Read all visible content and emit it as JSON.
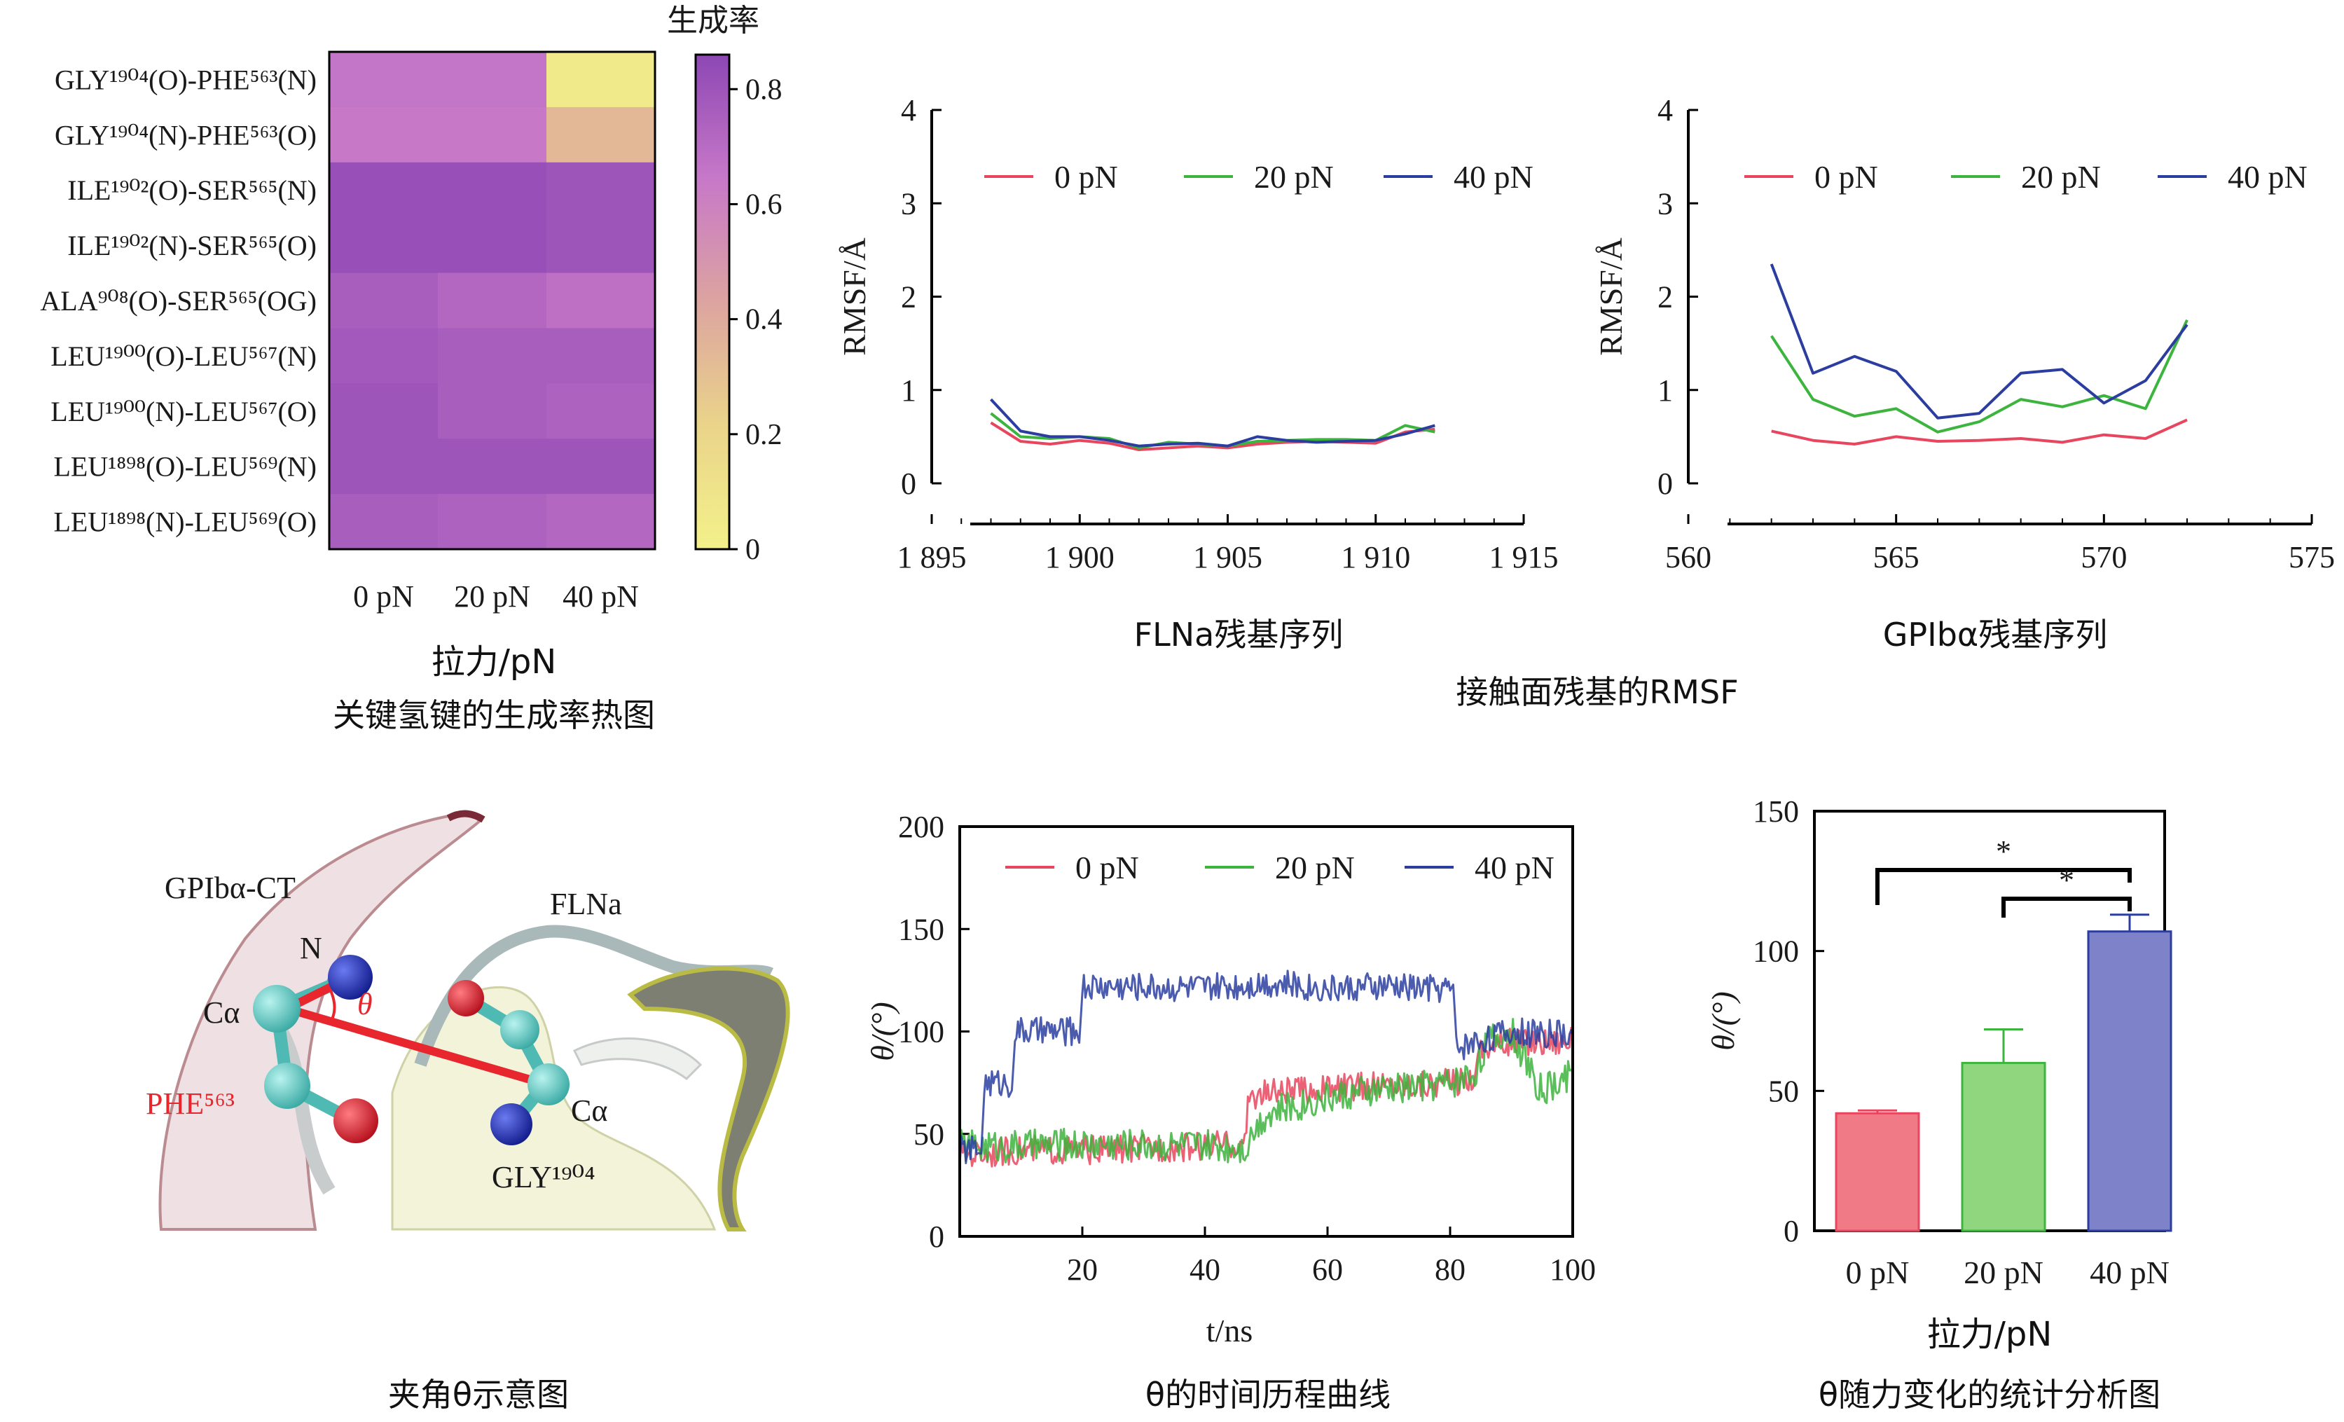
{
  "chart_data": [
    {
      "type": "heatmap",
      "rows": [
        "GLY¹⁹⁰⁴(O)-PHE⁵⁶³(N)",
        "GLY¹⁹⁰⁴(N)-PHE⁵⁶³(O)",
        "ILE¹⁹⁰²(O)-SER⁵⁶⁵(N)",
        "ILE¹⁹⁰²(N)-SER⁵⁶⁵(O)",
        "ALA⁹⁰⁸(O)-SER⁵⁶⁵(OG)",
        "LEU¹⁹⁰⁰(O)-LEU⁵⁶⁷(N)",
        "LEU¹⁹⁰⁰(N)-LEU⁵⁶⁷(O)",
        "LEU¹⁸⁹⁸(O)-LEU⁵⁶⁹(N)",
        "LEU¹⁸⁹⁸(N)-LEU⁵⁶⁹(O)"
      ],
      "columns": [
        "0 pN",
        "20 pN",
        "40 pN"
      ],
      "values": [
        [
          0.66,
          0.66,
          0.05
        ],
        [
          0.64,
          0.64,
          0.34
        ],
        [
          0.82,
          0.82,
          0.8
        ],
        [
          0.82,
          0.82,
          0.8
        ],
        [
          0.76,
          0.72,
          0.68
        ],
        [
          0.78,
          0.76,
          0.76
        ],
        [
          0.8,
          0.76,
          0.74
        ],
        [
          0.8,
          0.8,
          0.8
        ],
        [
          0.76,
          0.74,
          0.72
        ]
      ],
      "xlabel": "拉力/pN",
      "caption": "关键氢键的生成率热图",
      "colorbar": {
        "title": "生成率",
        "ticks": [
          "0",
          "0.2",
          "0.4",
          "0.6",
          "0.8"
        ],
        "range": [
          0,
          0.86
        ]
      }
    },
    {
      "type": "line",
      "xlabel": "FLNa残基序列",
      "ylabel": "RMSF/Å",
      "xlim": [
        1895,
        1915
      ],
      "ylim": [
        0,
        4
      ],
      "xticks": [
        "1 895",
        "1 900",
        "1 905",
        "1 910",
        "1 915"
      ],
      "yticks": [
        "0",
        "1",
        "2",
        "3",
        "4"
      ],
      "x": [
        1897,
        1898,
        1899,
        1900,
        1901,
        1902,
        1903,
        1904,
        1905,
        1906,
        1907,
        1908,
        1909,
        1910,
        1911,
        1912
      ],
      "series": [
        {
          "name": "0 pN",
          "color": "#e8465e",
          "values": [
            0.65,
            0.45,
            0.42,
            0.46,
            0.43,
            0.36,
            0.38,
            0.4,
            0.38,
            0.42,
            0.44,
            0.45,
            0.44,
            0.43,
            0.55,
            0.58
          ]
        },
        {
          "name": "20 pN",
          "color": "#3db43d",
          "values": [
            0.75,
            0.5,
            0.48,
            0.5,
            0.48,
            0.38,
            0.44,
            0.42,
            0.4,
            0.45,
            0.46,
            0.47,
            0.47,
            0.46,
            0.62,
            0.55
          ]
        },
        {
          "name": "40 pN",
          "color": "#2b3ea0",
          "values": [
            0.9,
            0.56,
            0.5,
            0.5,
            0.46,
            0.4,
            0.42,
            0.43,
            0.4,
            0.5,
            0.46,
            0.44,
            0.45,
            0.46,
            0.53,
            0.62
          ]
        }
      ],
      "legend": "top"
    },
    {
      "type": "line",
      "xlabel": "GPIbα残基序列",
      "ylabel": "RMSF/Å",
      "xlim": [
        560,
        575
      ],
      "ylim": [
        0,
        4
      ],
      "xticks": [
        "560",
        "565",
        "570",
        "575"
      ],
      "yticks": [
        "0",
        "1",
        "2",
        "3",
        "4"
      ],
      "x": [
        562,
        563,
        564,
        565,
        566,
        567,
        568,
        569,
        570,
        571,
        572
      ],
      "series": [
        {
          "name": "0 pN",
          "color": "#e8465e",
          "values": [
            0.56,
            0.46,
            0.42,
            0.5,
            0.45,
            0.46,
            0.48,
            0.44,
            0.52,
            0.48,
            0.68
          ]
        },
        {
          "name": "20 pN",
          "color": "#3db43d",
          "values": [
            1.58,
            0.9,
            0.72,
            0.8,
            0.55,
            0.66,
            0.9,
            0.82,
            0.94,
            0.8,
            1.75
          ]
        },
        {
          "name": "40 pN",
          "color": "#2b3ea0",
          "values": [
            2.35,
            1.18,
            1.36,
            1.2,
            0.7,
            0.75,
            1.18,
            1.22,
            0.86,
            1.1,
            1.7
          ]
        }
      ],
      "legend": "top",
      "group_caption": "接触面残基的RMSF"
    },
    {
      "type": "line",
      "xlabel": "t/ns",
      "ylabel": "θ/(°)",
      "xlim": [
        0,
        100
      ],
      "ylim": [
        0,
        200
      ],
      "xticks": [
        "20",
        "40",
        "60",
        "80",
        "100"
      ],
      "yticks": [
        "0",
        "50",
        "100",
        "150",
        "200"
      ],
      "series": [
        {
          "name": "0 pN",
          "color": "#e8465e",
          "x": [
            0,
            10,
            20,
            30,
            40,
            45,
            47,
            50,
            60,
            70,
            80,
            84,
            85,
            90,
            100
          ],
          "values": [
            40,
            42,
            42,
            43,
            44,
            45,
            68,
            70,
            72,
            74,
            75,
            78,
            92,
            95,
            96
          ]
        },
        {
          "name": "20 pN",
          "color": "#3db43d",
          "x": [
            0,
            10,
            20,
            30,
            40,
            47,
            48,
            50,
            60,
            70,
            80,
            84,
            86,
            90,
            95,
            100
          ],
          "values": [
            44,
            44,
            45,
            45,
            44,
            44,
            52,
            60,
            68,
            72,
            75,
            80,
            95,
            100,
            70,
            80
          ]
        },
        {
          "name": "40 pN",
          "color": "#2b3ea0",
          "x": [
            0,
            3,
            4,
            8,
            9,
            19,
            20,
            30,
            40,
            50,
            60,
            70,
            80,
            81,
            85,
            90,
            100
          ],
          "values": [
            42,
            42,
            75,
            75,
            100,
            100,
            122,
            122,
            121,
            124,
            121,
            122,
            121,
            92,
            96,
            100,
            98
          ]
        }
      ],
      "legend": "top",
      "caption": "θ的时间历程曲线"
    },
    {
      "type": "bar",
      "categories": [
        "0 pN",
        "20 pN",
        "40 pN"
      ],
      "values": [
        42,
        60,
        107
      ],
      "errors": [
        1,
        12,
        6
      ],
      "colors": [
        "#f07a86",
        "#8fd67e",
        "#7e82c9"
      ],
      "edge_colors": [
        "#e8465e",
        "#3db43d",
        "#2b3ea0"
      ],
      "xlabel": "拉力/pN",
      "ylabel": "θ/(°)",
      "ylim": [
        0,
        150
      ],
      "yticks": [
        "0",
        "50",
        "100",
        "150"
      ],
      "significance": [
        {
          "from": "0 pN",
          "to": "40 pN",
          "label": "*"
        },
        {
          "from": "20 pN",
          "to": "40 pN",
          "label": "*"
        }
      ],
      "caption": "θ随力变化的统计分析图"
    }
  ],
  "diagram": {
    "labels": {
      "gpiba": "GPIbα-CT",
      "flna": "FLNa",
      "n": "N",
      "ca_left": "Cα",
      "theta": "θ",
      "phe": "PHE⁵⁶³",
      "ca_right": "Cα",
      "gly": "GLY¹⁹⁰⁴"
    },
    "colors": {
      "angle_line": "#e8262e",
      "carbon": "#5fc9c4",
      "nitrogen": "#1f2fb8",
      "oxygen": "#e0202c"
    },
    "caption": "夹角θ示意图"
  }
}
